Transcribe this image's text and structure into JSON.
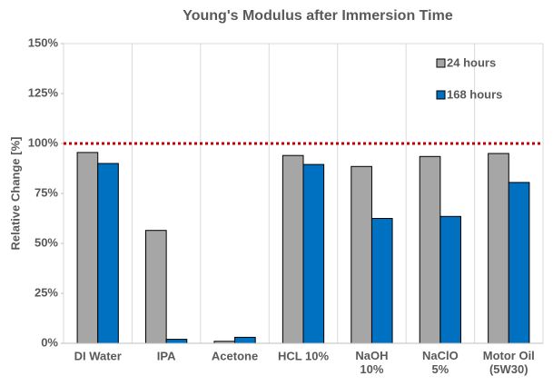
{
  "chart_data": {
    "type": "bar",
    "title": "Young's Modulus after Immersion Time",
    "y_label": "Relative Change [%]",
    "categories": [
      "DI Water",
      "IPA",
      "Acetone",
      "HCL 10%",
      "NaOH\n10%",
      "NaClO\n5%",
      "Motor Oil\n(5W30)"
    ],
    "series": [
      {
        "name": "24 hours",
        "color": "#a6a6a6",
        "values": [
          95.5,
          56.5,
          1,
          94,
          88.5,
          93.5,
          95
        ]
      },
      {
        "name": "168 hours",
        "color": "#0070c0",
        "values": [
          90,
          2,
          3,
          89.5,
          62.5,
          63.5,
          80.5
        ]
      }
    ],
    "ylim": [
      0,
      150
    ],
    "yticks": [
      {
        "value": 0,
        "label": "0%"
      },
      {
        "value": 25,
        "label": "25%"
      },
      {
        "value": 50,
        "label": "50%"
      },
      {
        "value": 75,
        "label": "75%"
      },
      {
        "value": 100,
        "label": "100%"
      },
      {
        "value": 125,
        "label": "125%"
      },
      {
        "value": 150,
        "label": "150%"
      }
    ],
    "reference_line": {
      "value": 100,
      "color": "#c00000"
    },
    "legend": "upper right",
    "grid": "vertical"
  }
}
